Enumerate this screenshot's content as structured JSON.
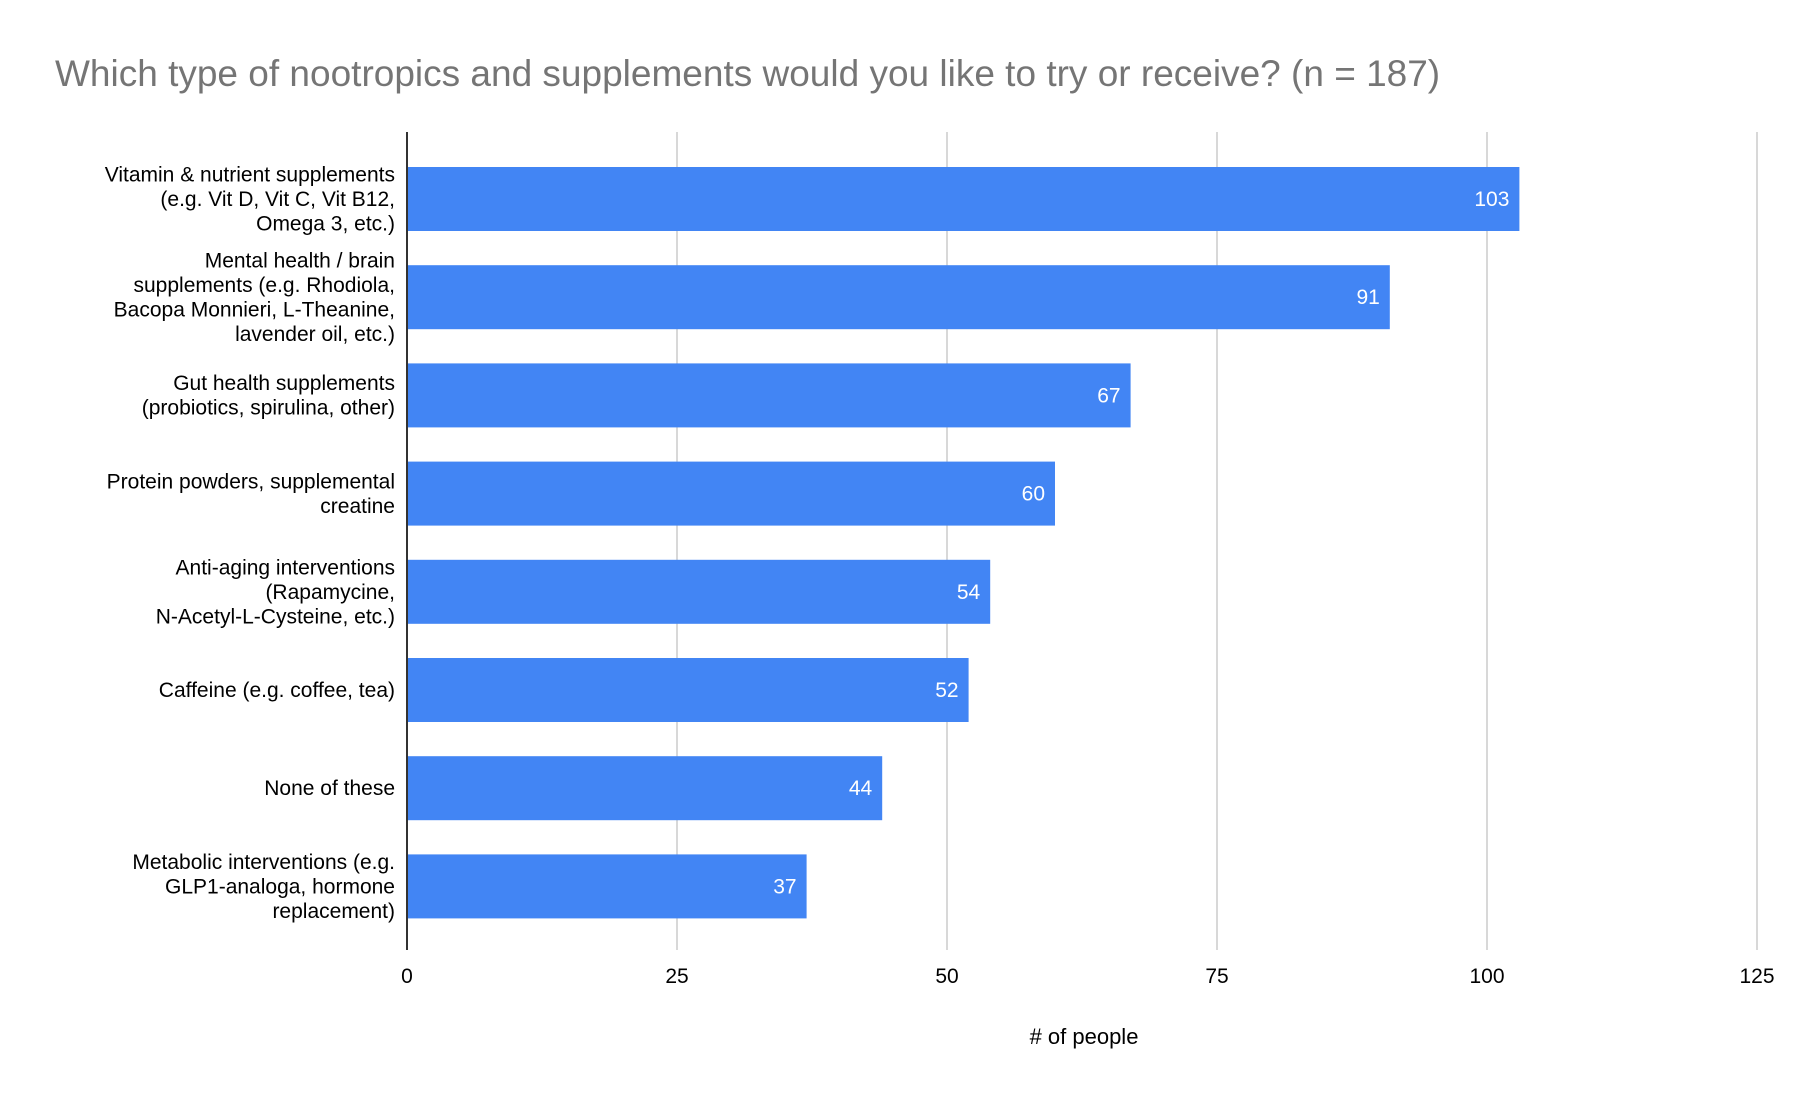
{
  "chart_data": {
    "type": "bar",
    "orientation": "horizontal",
    "title": "Which type of nootropics and supplements would you like to try or receive? (n = 187)",
    "xlabel": "# of people",
    "ylabel": "",
    "xlim": [
      0,
      125
    ],
    "xticks": [
      "0",
      "25",
      "50",
      "75",
      "100",
      "125"
    ],
    "grid": true,
    "legend": "none",
    "bar_color": "#4285f4",
    "categories": [
      [
        "Vitamin & nutrient supplements",
        "(e.g. Vit D, Vit C, Vit B12,",
        "Omega 3, etc.)"
      ],
      [
        "Mental health / brain",
        "supplements (e.g. Rhodiola,",
        "Bacopa Monnieri, L-Theanine,",
        "lavender oil, etc.)"
      ],
      [
        "Gut health supplements",
        "(probiotics, spirulina, other)"
      ],
      [
        "Protein powders, supplemental",
        "creatine"
      ],
      [
        "Anti-aging interventions",
        "(Rapamycine,",
        "N-Acetyl-L-Cysteine, etc.)"
      ],
      [
        "Caffeine (e.g. coffee, tea)"
      ],
      [
        "None of these"
      ],
      [
        "Metabolic interventions (e.g.",
        "GLP1-analoga, hormone",
        "replacement)"
      ]
    ],
    "values": [
      103,
      91,
      67,
      60,
      54,
      52,
      44,
      37
    ],
    "data_labels": [
      "103",
      "91",
      "67",
      "60",
      "54",
      "52",
      "44",
      "37"
    ]
  }
}
